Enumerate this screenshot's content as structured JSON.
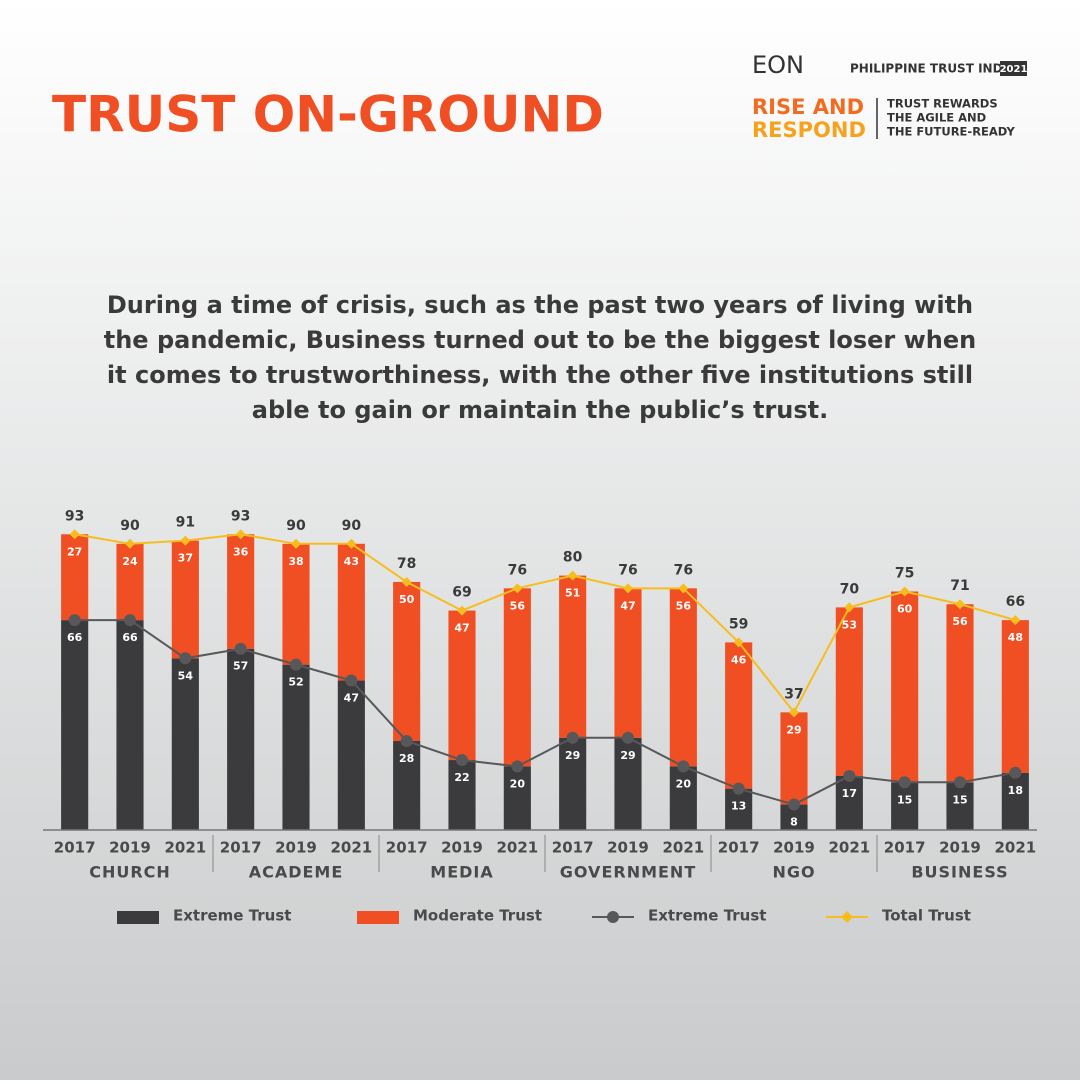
{
  "header": {
    "brand": "EON",
    "index_name": "PHILIPPINE TRUST INDEX",
    "index_year": "2021",
    "campaign": [
      "RISE AND",
      "RESPOND"
    ],
    "tagline": [
      "TRUST REWARDS",
      "THE AGILE AND",
      "THE FUTURE-READY"
    ]
  },
  "chart_data": {
    "type": "bar",
    "title": "TRUST ON-GROUND",
    "subtitle": [
      "During a time of crisis, such as the past two years of living with",
      "the pandemic, Business turned out to be the biggest loser when",
      "it comes to trustworthiness, with the other five institutions still",
      "able to gain or maintain the public’s trust."
    ],
    "groups": [
      {
        "name": "CHURCH",
        "categories": [
          "2017",
          "2019",
          "2021"
        ]
      },
      {
        "name": "ACADEME",
        "categories": [
          "2017",
          "2019",
          "2021"
        ]
      },
      {
        "name": "MEDIA",
        "categories": [
          "2017",
          "2019",
          "2021"
        ]
      },
      {
        "name": "GOVERNMENT",
        "categories": [
          "2017",
          "2019",
          "2021"
        ]
      },
      {
        "name": "NGO",
        "categories": [
          "2017",
          "2019",
          "2021"
        ]
      },
      {
        "name": "BUSINESS",
        "categories": [
          "2017",
          "2019",
          "2021"
        ]
      }
    ],
    "series": [
      {
        "name": "Extreme Trust",
        "type": "bar",
        "color": "#3b3b3d",
        "values": [
          66,
          66,
          54,
          57,
          52,
          47,
          28,
          22,
          20,
          29,
          29,
          20,
          13,
          8,
          17,
          15,
          15,
          18
        ]
      },
      {
        "name": "Moderate Trust",
        "type": "bar",
        "color": "#f04e23",
        "values": [
          27,
          24,
          37,
          36,
          38,
          43,
          50,
          47,
          56,
          51,
          47,
          56,
          46,
          29,
          53,
          60,
          56,
          48
        ]
      },
      {
        "name": "Extreme Trust",
        "type": "line",
        "color": "#58585a",
        "values": [
          66,
          66,
          54,
          57,
          52,
          47,
          28,
          22,
          20,
          29,
          29,
          20,
          13,
          8,
          17,
          15,
          15,
          18
        ]
      },
      {
        "name": "Total Trust",
        "type": "line",
        "color": "#f7bd1f",
        "values": [
          93,
          90,
          91,
          93,
          90,
          90,
          78,
          69,
          76,
          80,
          76,
          76,
          59,
          37,
          70,
          75,
          71,
          66
        ]
      }
    ],
    "ylim": [
      0,
      100
    ],
    "stacked": true
  }
}
